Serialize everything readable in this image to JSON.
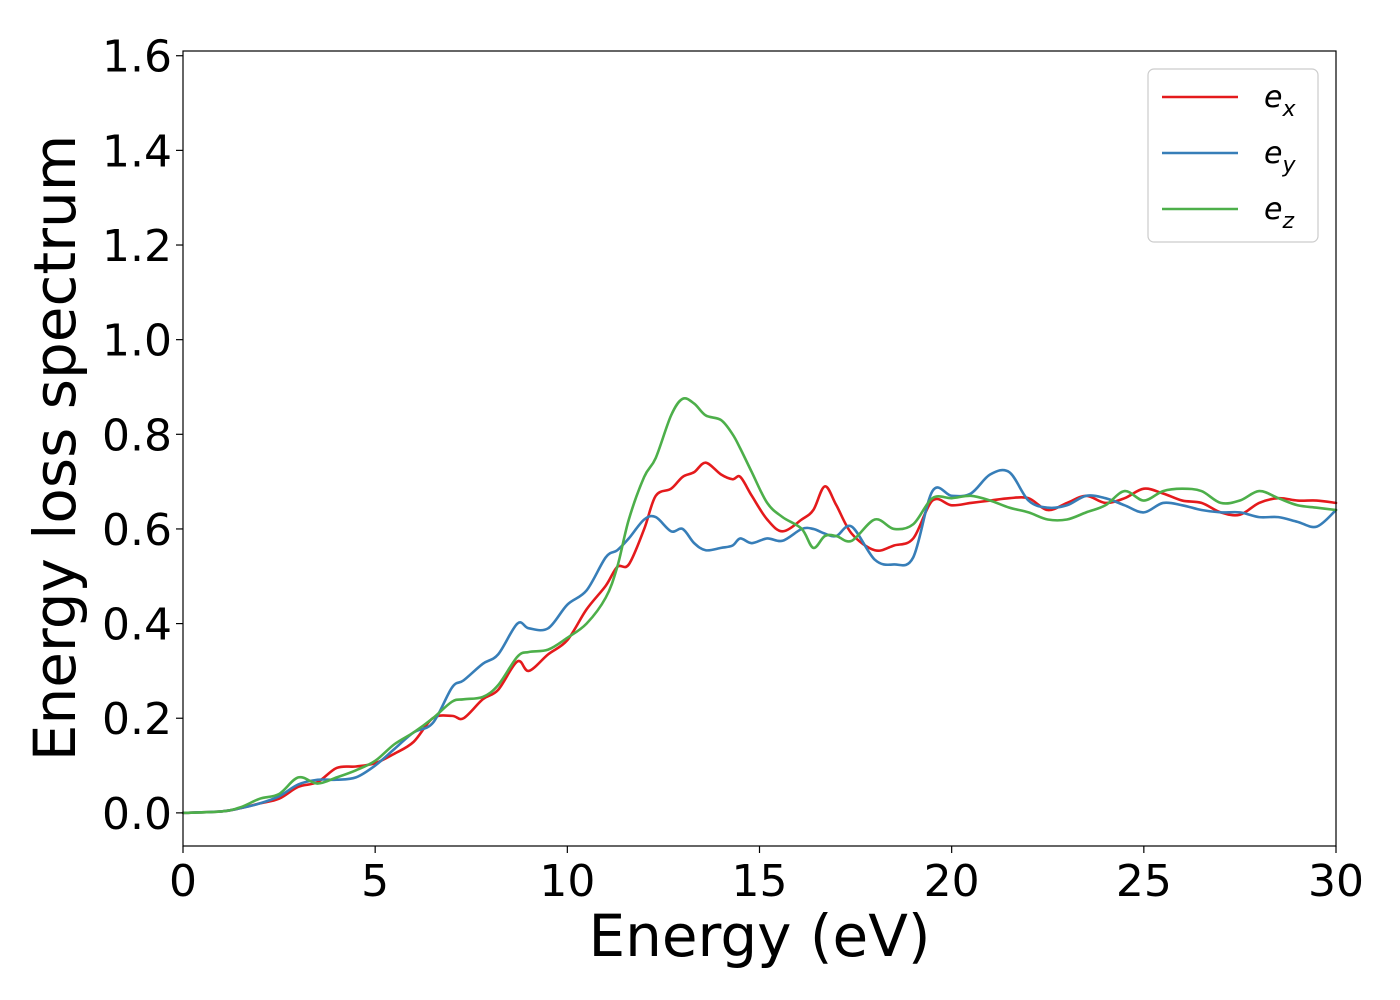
{
  "chart_data": {
    "type": "line",
    "xlabel": "Energy (eV)",
    "ylabel": "Energy loss spectrum",
    "xlim": [
      0,
      30
    ],
    "ylim": [
      -0.07,
      1.61
    ],
    "xticks": [
      "0",
      "5",
      "10",
      "15",
      "20",
      "25",
      "30"
    ],
    "yticks": [
      "0.0",
      "0.2",
      "0.4",
      "0.6",
      "0.8",
      "1.0",
      "1.2",
      "1.4",
      "1.6"
    ],
    "grid": false,
    "legend_position": "top-right",
    "series": [
      {
        "name": "e_x",
        "legend_base": "e",
        "legend_sub": "x",
        "color": "#e41a1c",
        "points": [
          [
            0,
            0.0
          ],
          [
            1,
            0.003
          ],
          [
            1.5,
            0.01
          ],
          [
            2,
            0.02
          ],
          [
            2.5,
            0.03
          ],
          [
            3,
            0.055
          ],
          [
            3.5,
            0.065
          ],
          [
            4,
            0.095
          ],
          [
            4.5,
            0.098
          ],
          [
            5,
            0.105
          ],
          [
            5.5,
            0.125
          ],
          [
            6,
            0.15
          ],
          [
            6.5,
            0.2
          ],
          [
            7,
            0.205
          ],
          [
            7.3,
            0.2
          ],
          [
            7.8,
            0.24
          ],
          [
            8.2,
            0.26
          ],
          [
            8.7,
            0.32
          ],
          [
            9,
            0.3
          ],
          [
            9.5,
            0.335
          ],
          [
            10,
            0.365
          ],
          [
            10.5,
            0.43
          ],
          [
            11,
            0.48
          ],
          [
            11.3,
            0.52
          ],
          [
            11.6,
            0.525
          ],
          [
            12,
            0.6
          ],
          [
            12.3,
            0.67
          ],
          [
            12.7,
            0.685
          ],
          [
            13,
            0.71
          ],
          [
            13.3,
            0.72
          ],
          [
            13.6,
            0.74
          ],
          [
            14,
            0.715
          ],
          [
            14.3,
            0.705
          ],
          [
            14.5,
            0.71
          ],
          [
            14.8,
            0.67
          ],
          [
            15.2,
            0.62
          ],
          [
            15.6,
            0.595
          ],
          [
            16.1,
            0.62
          ],
          [
            16.4,
            0.64
          ],
          [
            16.7,
            0.69
          ],
          [
            17,
            0.65
          ],
          [
            17.4,
            0.59
          ],
          [
            18,
            0.555
          ],
          [
            18.5,
            0.565
          ],
          [
            19,
            0.58
          ],
          [
            19.5,
            0.66
          ],
          [
            20,
            0.65
          ],
          [
            20.5,
            0.655
          ],
          [
            21,
            0.66
          ],
          [
            21.5,
            0.665
          ],
          [
            22,
            0.665
          ],
          [
            22.5,
            0.64
          ],
          [
            23,
            0.655
          ],
          [
            23.5,
            0.67
          ],
          [
            24,
            0.655
          ],
          [
            24.5,
            0.665
          ],
          [
            25,
            0.685
          ],
          [
            25.5,
            0.675
          ],
          [
            26,
            0.66
          ],
          [
            26.5,
            0.655
          ],
          [
            27,
            0.635
          ],
          [
            27.5,
            0.63
          ],
          [
            28,
            0.655
          ],
          [
            28.5,
            0.665
          ],
          [
            29,
            0.66
          ],
          [
            29.5,
            0.66
          ],
          [
            30,
            0.655
          ]
        ]
      },
      {
        "name": "e_y",
        "legend_base": "e",
        "legend_sub": "y",
        "color": "#377eb8",
        "points": [
          [
            0,
            0.0
          ],
          [
            1,
            0.003
          ],
          [
            1.5,
            0.01
          ],
          [
            2,
            0.02
          ],
          [
            2.5,
            0.035
          ],
          [
            3,
            0.06
          ],
          [
            3.5,
            0.07
          ],
          [
            4,
            0.07
          ],
          [
            4.5,
            0.075
          ],
          [
            5,
            0.1
          ],
          [
            5.5,
            0.135
          ],
          [
            6,
            0.17
          ],
          [
            6.5,
            0.19
          ],
          [
            7,
            0.265
          ],
          [
            7.3,
            0.28
          ],
          [
            7.8,
            0.315
          ],
          [
            8.2,
            0.335
          ],
          [
            8.7,
            0.4
          ],
          [
            9,
            0.39
          ],
          [
            9.5,
            0.39
          ],
          [
            10,
            0.44
          ],
          [
            10.5,
            0.47
          ],
          [
            11,
            0.54
          ],
          [
            11.3,
            0.555
          ],
          [
            11.6,
            0.58
          ],
          [
            12,
            0.62
          ],
          [
            12.3,
            0.625
          ],
          [
            12.7,
            0.595
          ],
          [
            13,
            0.6
          ],
          [
            13.3,
            0.57
          ],
          [
            13.6,
            0.555
          ],
          [
            14,
            0.56
          ],
          [
            14.3,
            0.565
          ],
          [
            14.5,
            0.58
          ],
          [
            14.8,
            0.57
          ],
          [
            15.2,
            0.58
          ],
          [
            15.6,
            0.575
          ],
          [
            16.1,
            0.6
          ],
          [
            16.4,
            0.6
          ],
          [
            16.7,
            0.59
          ],
          [
            17,
            0.585
          ],
          [
            17.4,
            0.605
          ],
          [
            18,
            0.535
          ],
          [
            18.5,
            0.525
          ],
          [
            19,
            0.54
          ],
          [
            19.5,
            0.68
          ],
          [
            20,
            0.67
          ],
          [
            20.5,
            0.675
          ],
          [
            21,
            0.715
          ],
          [
            21.5,
            0.72
          ],
          [
            22,
            0.66
          ],
          [
            22.5,
            0.645
          ],
          [
            23,
            0.65
          ],
          [
            23.5,
            0.67
          ],
          [
            24,
            0.665
          ],
          [
            24.5,
            0.65
          ],
          [
            25,
            0.635
          ],
          [
            25.5,
            0.655
          ],
          [
            26,
            0.65
          ],
          [
            26.5,
            0.64
          ],
          [
            27,
            0.635
          ],
          [
            27.5,
            0.635
          ],
          [
            28,
            0.625
          ],
          [
            28.5,
            0.625
          ],
          [
            29,
            0.615
          ],
          [
            29.5,
            0.605
          ],
          [
            30,
            0.64
          ]
        ]
      },
      {
        "name": "e_z",
        "legend_base": "e",
        "legend_sub": "z",
        "color": "#4daf4a",
        "points": [
          [
            0,
            0.0
          ],
          [
            1,
            0.003
          ],
          [
            1.5,
            0.012
          ],
          [
            2,
            0.03
          ],
          [
            2.5,
            0.04
          ],
          [
            3,
            0.075
          ],
          [
            3.5,
            0.062
          ],
          [
            4,
            0.075
          ],
          [
            4.5,
            0.09
          ],
          [
            5,
            0.11
          ],
          [
            5.5,
            0.145
          ],
          [
            6,
            0.17
          ],
          [
            6.5,
            0.2
          ],
          [
            7,
            0.235
          ],
          [
            7.3,
            0.24
          ],
          [
            7.8,
            0.245
          ],
          [
            8.2,
            0.27
          ],
          [
            8.7,
            0.33
          ],
          [
            9,
            0.34
          ],
          [
            9.5,
            0.345
          ],
          [
            10,
            0.37
          ],
          [
            10.5,
            0.4
          ],
          [
            11,
            0.455
          ],
          [
            11.3,
            0.52
          ],
          [
            11.6,
            0.62
          ],
          [
            12,
            0.71
          ],
          [
            12.3,
            0.75
          ],
          [
            12.7,
            0.84
          ],
          [
            13,
            0.875
          ],
          [
            13.3,
            0.865
          ],
          [
            13.6,
            0.84
          ],
          [
            14,
            0.83
          ],
          [
            14.3,
            0.8
          ],
          [
            14.5,
            0.77
          ],
          [
            14.8,
            0.72
          ],
          [
            15.2,
            0.655
          ],
          [
            15.6,
            0.625
          ],
          [
            16.1,
            0.6
          ],
          [
            16.4,
            0.56
          ],
          [
            16.7,
            0.585
          ],
          [
            17,
            0.585
          ],
          [
            17.4,
            0.575
          ],
          [
            18,
            0.62
          ],
          [
            18.5,
            0.6
          ],
          [
            19,
            0.61
          ],
          [
            19.5,
            0.665
          ],
          [
            20,
            0.665
          ],
          [
            20.5,
            0.67
          ],
          [
            21,
            0.66
          ],
          [
            21.5,
            0.645
          ],
          [
            22,
            0.635
          ],
          [
            22.5,
            0.62
          ],
          [
            23,
            0.62
          ],
          [
            23.5,
            0.635
          ],
          [
            24,
            0.65
          ],
          [
            24.5,
            0.68
          ],
          [
            25,
            0.66
          ],
          [
            25.5,
            0.68
          ],
          [
            26,
            0.685
          ],
          [
            26.5,
            0.68
          ],
          [
            27,
            0.655
          ],
          [
            27.5,
            0.66
          ],
          [
            28,
            0.68
          ],
          [
            28.5,
            0.665
          ],
          [
            29,
            0.65
          ],
          [
            29.5,
            0.645
          ],
          [
            30,
            0.64
          ]
        ]
      }
    ]
  }
}
